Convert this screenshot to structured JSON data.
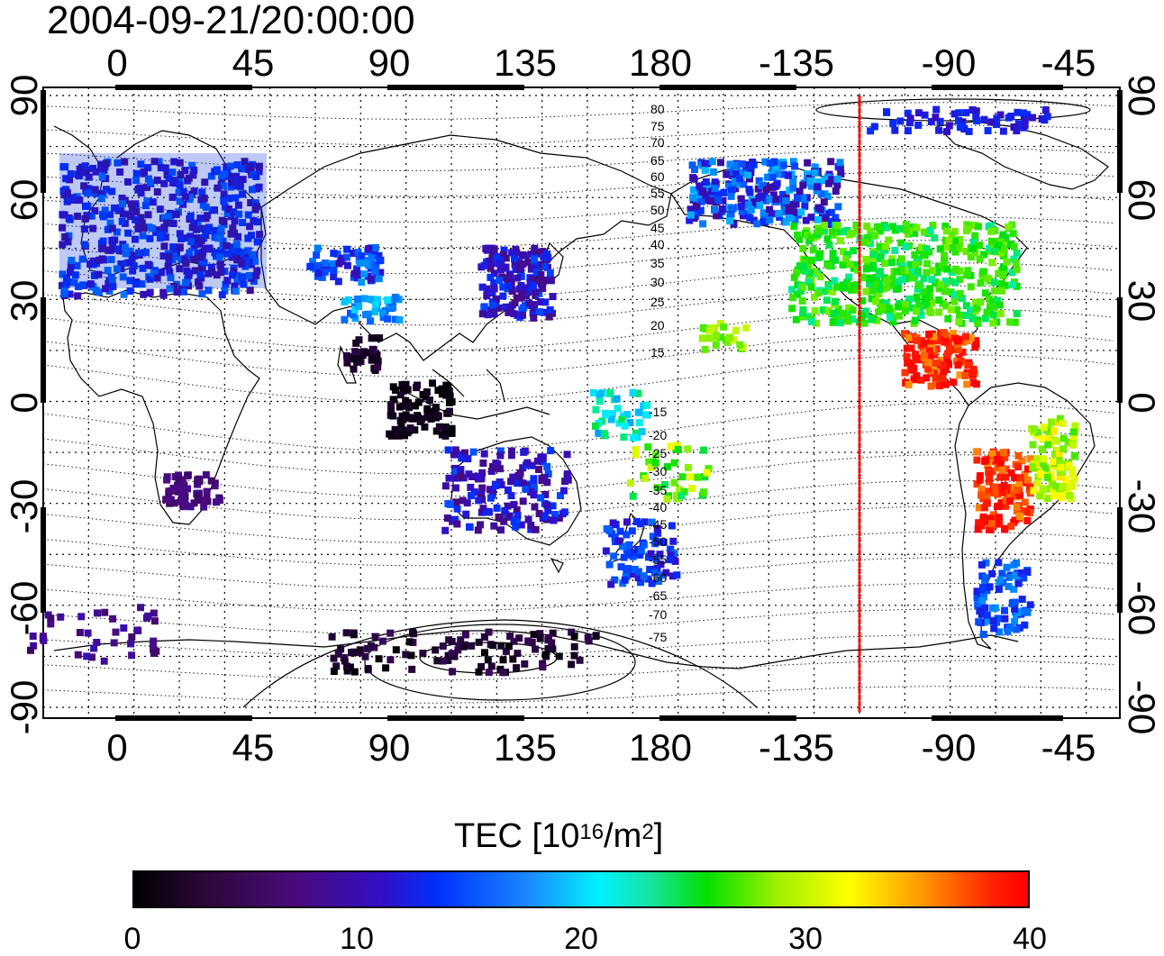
{
  "title": "2004-09-21/20:00:00",
  "map": {
    "top_lon_ticks": [
      "0",
      "45",
      "90",
      "135",
      "180",
      "-135",
      "-90",
      "-45"
    ],
    "bottom_lon_ticks": [
      "0",
      "45",
      "90",
      "135",
      "180",
      "-135",
      "-90",
      "-45"
    ],
    "left_lat_ticks": [
      "90",
      "60",
      "30",
      "0",
      "-30",
      "-60",
      "-90"
    ],
    "right_lat_ticks": [
      "90",
      "60",
      "30",
      "0",
      "-30",
      "-60",
      "-90"
    ],
    "contour_labels": [
      "80",
      "75",
      "70",
      "65",
      "60",
      "55",
      "50",
      "45",
      "40",
      "35",
      "30",
      "25",
      "20",
      "15",
      "-15",
      "-20",
      "-25",
      "-30",
      "-35",
      "-40",
      "-45",
      "-50",
      "-55",
      "-60",
      "-65",
      "-70",
      "-75"
    ],
    "terminator_longitude": -120,
    "terminator_color": "#ff0000"
  },
  "colorbar": {
    "title_prefix": "TEC  [10",
    "title_exp1": "16",
    "title_mid": "/m",
    "title_exp2": "2",
    "title_suffix": "]",
    "ticks": [
      "0",
      "10",
      "20",
      "30",
      "40"
    ],
    "range": [
      0,
      40
    ],
    "colors": [
      "#000000",
      "#4a0a7a",
      "#0030ff",
      "#00f2ff",
      "#00e000",
      "#ffff00",
      "#ff0000"
    ]
  }
}
